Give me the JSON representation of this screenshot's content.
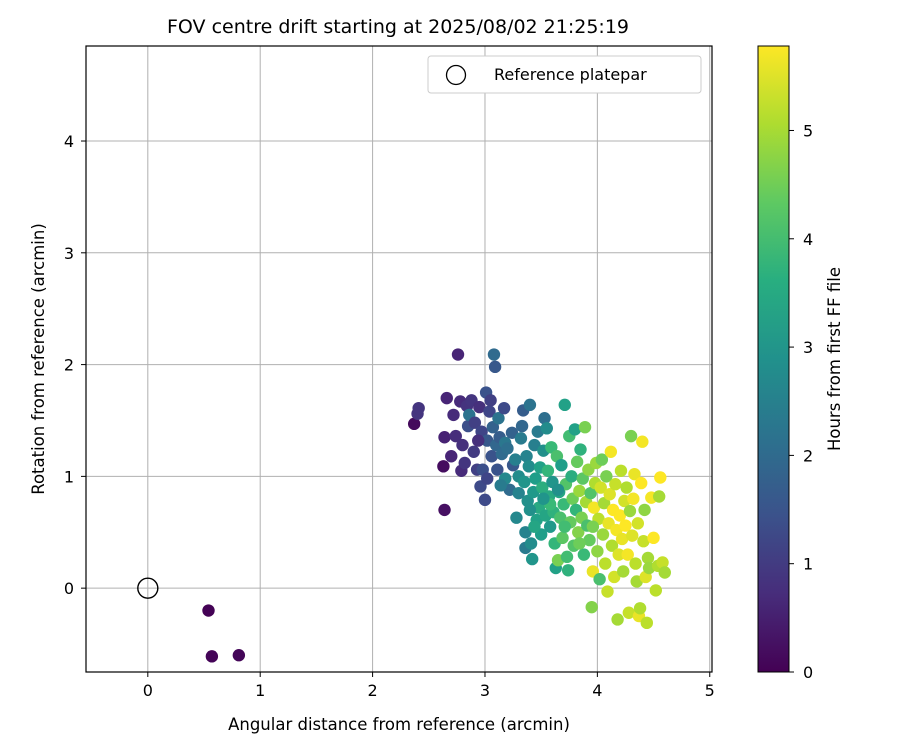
{
  "chart_data": {
    "type": "scatter",
    "title": "FOV centre drift starting at 2025/08/02 21:25:19",
    "xlabel": "Angular distance from reference (arcmin)",
    "ylabel": "Rotation from reference (arcmin)",
    "xlim": [
      -0.55,
      5.02
    ],
    "ylim": [
      -0.75,
      4.85
    ],
    "xticks": [
      0,
      1,
      2,
      3,
      4,
      5
    ],
    "yticks": [
      0,
      1,
      2,
      3,
      4
    ],
    "grid": true,
    "legend": {
      "placement": "top-right",
      "entries": [
        "Reference platepar"
      ]
    },
    "colorbar": {
      "label": "Hours from first FF file",
      "range": [
        0,
        5.78
      ],
      "ticks": [
        0,
        1,
        2,
        3,
        4,
        5
      ],
      "colormap": "viridis"
    },
    "reference": {
      "name": "Reference platepar",
      "x": 0,
      "y": 0,
      "marker": "open-circle"
    },
    "points": [
      {
        "x": 0.54,
        "y": -0.2,
        "t": 0.02
      },
      {
        "x": 0.57,
        "y": -0.61,
        "t": 0.05
      },
      {
        "x": 0.81,
        "y": -0.6,
        "t": 0.08
      },
      {
        "x": 2.37,
        "y": 1.47,
        "t": 0.15
      },
      {
        "x": 2.4,
        "y": 1.56,
        "t": 0.9
      },
      {
        "x": 2.41,
        "y": 1.61,
        "t": 0.9
      },
      {
        "x": 2.63,
        "y": 1.09,
        "t": 0.2
      },
      {
        "x": 2.64,
        "y": 0.7,
        "t": 0.25
      },
      {
        "x": 2.64,
        "y": 1.35,
        "t": 0.55
      },
      {
        "x": 2.66,
        "y": 1.7,
        "t": 0.6
      },
      {
        "x": 2.7,
        "y": 1.18,
        "t": 0.6
      },
      {
        "x": 2.74,
        "y": 1.36,
        "t": 0.75
      },
      {
        "x": 2.76,
        "y": 2.09,
        "t": 0.6
      },
      {
        "x": 2.78,
        "y": 1.67,
        "t": 0.7
      },
      {
        "x": 2.79,
        "y": 1.05,
        "t": 0.7
      },
      {
        "x": 2.8,
        "y": 1.28,
        "t": 0.8
      },
      {
        "x": 2.82,
        "y": 1.12,
        "t": 0.9
      },
      {
        "x": 2.84,
        "y": 1.63,
        "t": 0.85
      },
      {
        "x": 2.85,
        "y": 1.45,
        "t": 1.4
      },
      {
        "x": 2.86,
        "y": 1.55,
        "t": 2.2
      },
      {
        "x": 2.88,
        "y": 1.68,
        "t": 0.9
      },
      {
        "x": 2.9,
        "y": 1.22,
        "t": 1.0
      },
      {
        "x": 2.91,
        "y": 1.48,
        "t": 1.1
      },
      {
        "x": 2.93,
        "y": 1.06,
        "t": 1.1
      },
      {
        "x": 2.95,
        "y": 1.62,
        "t": 0.8
      },
      {
        "x": 2.96,
        "y": 0.91,
        "t": 1.3
      },
      {
        "x": 2.97,
        "y": 1.4,
        "t": 1.2
      },
      {
        "x": 2.98,
        "y": 1.06,
        "t": 1.4
      },
      {
        "x": 3.0,
        "y": 0.79,
        "t": 1.3
      },
      {
        "x": 3.01,
        "y": 1.75,
        "t": 1.5
      },
      {
        "x": 3.02,
        "y": 1.32,
        "t": 1.6
      },
      {
        "x": 3.04,
        "y": 1.58,
        "t": 1.2
      },
      {
        "x": 3.05,
        "y": 1.68,
        "t": 1.1
      },
      {
        "x": 3.06,
        "y": 1.18,
        "t": 1.5
      },
      {
        "x": 3.07,
        "y": 1.44,
        "t": 1.8
      },
      {
        "x": 3.08,
        "y": 2.09,
        "t": 2.0
      },
      {
        "x": 3.09,
        "y": 1.98,
        "t": 1.6
      },
      {
        "x": 3.1,
        "y": 1.28,
        "t": 1.9
      },
      {
        "x": 3.11,
        "y": 1.06,
        "t": 1.5
      },
      {
        "x": 3.12,
        "y": 1.52,
        "t": 2.2
      },
      {
        "x": 3.13,
        "y": 1.35,
        "t": 1.7
      },
      {
        "x": 3.15,
        "y": 1.2,
        "t": 2.0
      },
      {
        "x": 3.17,
        "y": 1.61,
        "t": 1.3
      },
      {
        "x": 3.18,
        "y": 1.3,
        "t": 2.3
      },
      {
        "x": 3.2,
        "y": 1.25,
        "t": 2.1
      },
      {
        "x": 3.22,
        "y": 0.88,
        "t": 2.0
      },
      {
        "x": 3.24,
        "y": 1.39,
        "t": 1.8
      },
      {
        "x": 3.25,
        "y": 1.1,
        "t": 1.6
      },
      {
        "x": 3.28,
        "y": 0.63,
        "t": 2.7
      },
      {
        "x": 3.3,
        "y": 1.0,
        "t": 2.8
      },
      {
        "x": 3.32,
        "y": 1.34,
        "t": 2.4
      },
      {
        "x": 3.33,
        "y": 1.45,
        "t": 1.9
      },
      {
        "x": 3.34,
        "y": 1.59,
        "t": 1.7
      },
      {
        "x": 3.35,
        "y": 0.95,
        "t": 3.0
      },
      {
        "x": 3.36,
        "y": 0.5,
        "t": 2.6
      },
      {
        "x": 3.36,
        "y": 0.36,
        "t": 2.4
      },
      {
        "x": 3.37,
        "y": 1.18,
        "t": 2.6
      },
      {
        "x": 3.38,
        "y": 0.78,
        "t": 2.9
      },
      {
        "x": 3.39,
        "y": 1.09,
        "t": 2.8
      },
      {
        "x": 3.4,
        "y": 1.64,
        "t": 2.2
      },
      {
        "x": 3.41,
        "y": 0.4,
        "t": 2.8
      },
      {
        "x": 3.42,
        "y": 0.26,
        "t": 3.0
      },
      {
        "x": 3.43,
        "y": 0.86,
        "t": 3.1
      },
      {
        "x": 3.44,
        "y": 1.28,
        "t": 2.5
      },
      {
        "x": 3.45,
        "y": 0.98,
        "t": 3.2
      },
      {
        "x": 3.46,
        "y": 0.61,
        "t": 3.3
      },
      {
        "x": 3.47,
        "y": 1.4,
        "t": 2.4
      },
      {
        "x": 3.48,
        "y": 0.72,
        "t": 3.5
      },
      {
        "x": 3.49,
        "y": 1.08,
        "t": 3.3
      },
      {
        "x": 3.5,
        "y": 0.48,
        "t": 3.2
      },
      {
        "x": 3.51,
        "y": 0.9,
        "t": 3.6
      },
      {
        "x": 3.52,
        "y": 1.23,
        "t": 2.9
      },
      {
        "x": 3.53,
        "y": 1.52,
        "t": 2.1
      },
      {
        "x": 3.54,
        "y": 0.65,
        "t": 3.4
      },
      {
        "x": 3.55,
        "y": 1.43,
        "t": 2.8
      },
      {
        "x": 3.56,
        "y": 1.05,
        "t": 3.8
      },
      {
        "x": 3.57,
        "y": 0.82,
        "t": 3.5
      },
      {
        "x": 3.58,
        "y": 0.55,
        "t": 3.1
      },
      {
        "x": 3.59,
        "y": 1.26,
        "t": 3.9
      },
      {
        "x": 3.6,
        "y": 0.95,
        "t": 3.0
      },
      {
        "x": 3.61,
        "y": 0.68,
        "t": 3.7
      },
      {
        "x": 3.62,
        "y": 0.4,
        "t": 3.8
      },
      {
        "x": 3.63,
        "y": 0.18,
        "t": 3.3
      },
      {
        "x": 3.64,
        "y": 1.18,
        "t": 4.1
      },
      {
        "x": 3.65,
        "y": 0.25,
        "t": 4.6
      },
      {
        "x": 3.66,
        "y": 0.86,
        "t": 3.4
      },
      {
        "x": 3.67,
        "y": 0.63,
        "t": 4.1
      },
      {
        "x": 3.68,
        "y": 1.1,
        "t": 3.2
      },
      {
        "x": 3.69,
        "y": 0.45,
        "t": 4.3
      },
      {
        "x": 3.7,
        "y": 0.75,
        "t": 3.9
      },
      {
        "x": 3.71,
        "y": 1.64,
        "t": 3.3
      },
      {
        "x": 3.72,
        "y": 0.93,
        "t": 4.2
      },
      {
        "x": 3.73,
        "y": 0.28,
        "t": 4.0
      },
      {
        "x": 3.74,
        "y": 0.16,
        "t": 3.7
      },
      {
        "x": 3.75,
        "y": 1.36,
        "t": 4.0
      },
      {
        "x": 3.76,
        "y": 0.59,
        "t": 4.4
      },
      {
        "x": 3.77,
        "y": 1.0,
        "t": 3.6
      },
      {
        "x": 3.78,
        "y": 0.8,
        "t": 4.5
      },
      {
        "x": 3.79,
        "y": 0.38,
        "t": 4.2
      },
      {
        "x": 3.8,
        "y": 1.42,
        "t": 3.3
      },
      {
        "x": 3.81,
        "y": 0.7,
        "t": 3.8
      },
      {
        "x": 3.82,
        "y": 1.13,
        "t": 4.4
      },
      {
        "x": 3.83,
        "y": 0.5,
        "t": 4.7
      },
      {
        "x": 3.84,
        "y": 0.87,
        "t": 4.9
      },
      {
        "x": 3.85,
        "y": 1.24,
        "t": 3.7
      },
      {
        "x": 3.86,
        "y": 0.63,
        "t": 4.6
      },
      {
        "x": 3.87,
        "y": 0.98,
        "t": 4.3
      },
      {
        "x": 3.88,
        "y": 0.3,
        "t": 3.9
      },
      {
        "x": 3.89,
        "y": 1.44,
        "t": 4.6
      },
      {
        "x": 3.9,
        "y": 0.77,
        "t": 5.0
      },
      {
        "x": 3.91,
        "y": 0.56,
        "t": 4.1
      },
      {
        "x": 3.92,
        "y": 1.06,
        "t": 4.8
      },
      {
        "x": 3.93,
        "y": 0.43,
        "t": 4.4
      },
      {
        "x": 3.94,
        "y": 0.85,
        "t": 4.2
      },
      {
        "x": 3.95,
        "y": -0.17,
        "t": 4.7
      },
      {
        "x": 3.96,
        "y": 0.15,
        "t": 5.6
      },
      {
        "x": 3.97,
        "y": 0.72,
        "t": 5.7
      },
      {
        "x": 3.98,
        "y": 0.94,
        "t": 5.1
      },
      {
        "x": 3.99,
        "y": 1.12,
        "t": 4.9
      },
      {
        "x": 4.0,
        "y": 0.33,
        "t": 4.8
      },
      {
        "x": 4.01,
        "y": 0.62,
        "t": 5.2
      },
      {
        "x": 4.02,
        "y": 0.08,
        "t": 4.1
      },
      {
        "x": 4.03,
        "y": 0.9,
        "t": 5.4
      },
      {
        "x": 4.04,
        "y": 1.15,
        "t": 4.5
      },
      {
        "x": 4.05,
        "y": 0.48,
        "t": 4.9
      },
      {
        "x": 4.06,
        "y": 0.76,
        "t": 5.0
      },
      {
        "x": 4.07,
        "y": 0.22,
        "t": 5.2
      },
      {
        "x": 4.08,
        "y": 1.0,
        "t": 4.6
      },
      {
        "x": 4.09,
        "y": -0.03,
        "t": 5.3
      },
      {
        "x": 4.1,
        "y": 0.58,
        "t": 5.6
      },
      {
        "x": 4.11,
        "y": 0.84,
        "t": 5.5
      },
      {
        "x": 4.12,
        "y": 1.22,
        "t": 5.7
      },
      {
        "x": 4.13,
        "y": 0.38,
        "t": 5.1
      },
      {
        "x": 4.14,
        "y": 0.7,
        "t": 5.8
      },
      {
        "x": 4.15,
        "y": 0.1,
        "t": 5.4
      },
      {
        "x": 4.16,
        "y": 0.93,
        "t": 5.3
      },
      {
        "x": 4.17,
        "y": 0.52,
        "t": 5.7
      },
      {
        "x": 4.18,
        "y": -0.28,
        "t": 5.0
      },
      {
        "x": 4.19,
        "y": 0.3,
        "t": 5.5
      },
      {
        "x": 4.2,
        "y": 0.65,
        "t": 5.8
      },
      {
        "x": 4.21,
        "y": 1.05,
        "t": 5.2
      },
      {
        "x": 4.22,
        "y": 0.44,
        "t": 5.6
      },
      {
        "x": 4.23,
        "y": 0.15,
        "t": 5.0
      },
      {
        "x": 4.24,
        "y": 0.78,
        "t": 5.4
      },
      {
        "x": 4.25,
        "y": 0.56,
        "t": 5.8
      },
      {
        "x": 4.26,
        "y": 0.9,
        "t": 5.1
      },
      {
        "x": 4.27,
        "y": 0.3,
        "t": 5.7
      },
      {
        "x": 4.28,
        "y": -0.22,
        "t": 5.3
      },
      {
        "x": 4.29,
        "y": 0.69,
        "t": 4.9
      },
      {
        "x": 4.3,
        "y": 1.36,
        "t": 4.6
      },
      {
        "x": 4.31,
        "y": 0.47,
        "t": 5.5
      },
      {
        "x": 4.32,
        "y": 0.8,
        "t": 5.7
      },
      {
        "x": 4.33,
        "y": 1.02,
        "t": 5.6
      },
      {
        "x": 4.34,
        "y": 0.22,
        "t": 5.2
      },
      {
        "x": 4.35,
        "y": 0.06,
        "t": 5.0
      },
      {
        "x": 4.36,
        "y": 0.58,
        "t": 5.4
      },
      {
        "x": 4.37,
        "y": -0.25,
        "t": 5.6
      },
      {
        "x": 4.38,
        "y": -0.18,
        "t": 5.1
      },
      {
        "x": 4.39,
        "y": 0.94,
        "t": 5.8
      },
      {
        "x": 4.4,
        "y": 1.31,
        "t": 5.7
      },
      {
        "x": 4.41,
        "y": 0.42,
        "t": 5.3
      },
      {
        "x": 4.42,
        "y": 0.7,
        "t": 4.8
      },
      {
        "x": 4.43,
        "y": 0.1,
        "t": 5.5
      },
      {
        "x": 4.44,
        "y": -0.31,
        "t": 5.2
      },
      {
        "x": 4.45,
        "y": 0.27,
        "t": 5.0
      },
      {
        "x": 4.46,
        "y": 0.18,
        "t": 4.9
      },
      {
        "x": 4.48,
        "y": 0.81,
        "t": 5.7
      },
      {
        "x": 4.5,
        "y": 0.45,
        "t": 5.8
      },
      {
        "x": 4.52,
        "y": -0.02,
        "t": 5.2
      },
      {
        "x": 4.54,
        "y": 0.2,
        "t": 5.1
      },
      {
        "x": 4.55,
        "y": 0.82,
        "t": 5.0
      },
      {
        "x": 4.56,
        "y": 0.99,
        "t": 5.8
      },
      {
        "x": 4.58,
        "y": 0.23,
        "t": 5.3
      },
      {
        "x": 4.6,
        "y": 0.14,
        "t": 5.0
      },
      {
        "x": 3.18,
        "y": 0.98,
        "t": 2.7
      },
      {
        "x": 3.27,
        "y": 1.15,
        "t": 2.5
      },
      {
        "x": 3.44,
        "y": 0.55,
        "t": 3.4
      },
      {
        "x": 3.58,
        "y": 0.75,
        "t": 3.9
      },
      {
        "x": 3.71,
        "y": 0.55,
        "t": 4.0
      },
      {
        "x": 3.84,
        "y": 0.4,
        "t": 4.5
      },
      {
        "x": 3.96,
        "y": 0.55,
        "t": 4.6
      },
      {
        "x": 3.52,
        "y": 0.8,
        "t": 3.0
      },
      {
        "x": 3.65,
        "y": 0.88,
        "t": 2.9
      },
      {
        "x": 3.4,
        "y": 0.7,
        "t": 2.9
      },
      {
        "x": 3.3,
        "y": 0.85,
        "t": 2.6
      },
      {
        "x": 2.94,
        "y": 1.32,
        "t": 0.8
      },
      {
        "x": 2.72,
        "y": 1.55,
        "t": 0.7
      },
      {
        "x": 3.02,
        "y": 0.98,
        "t": 1.2
      },
      {
        "x": 3.14,
        "y": 0.92,
        "t": 2.4
      }
    ]
  }
}
